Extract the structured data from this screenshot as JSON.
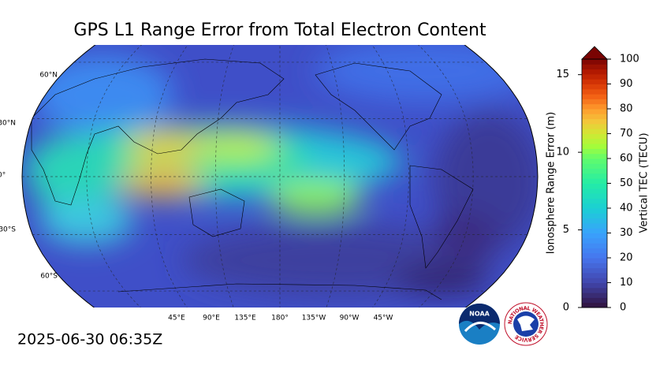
{
  "title": "GPS L1 Range Error from Total Electron Content",
  "timestamp": "2025-06-30 06:35Z",
  "map": {
    "lat_labels": [
      "60°N",
      "30°N",
      "0°",
      "30°S",
      "60°S"
    ],
    "lon_labels": [
      "45°E",
      "90°E",
      "135°E",
      "180°",
      "135°W",
      "90°W",
      "45°W"
    ]
  },
  "colorbar": {
    "left_label": "Ionosphere Range Error (m)",
    "left_lim": [
      0,
      16
    ],
    "left_ticks": [
      0,
      5,
      10,
      15
    ],
    "right_label": "Vertical TEC (TECU)",
    "right_lim": [
      0,
      100
    ],
    "right_ticks": [
      0,
      10,
      20,
      30,
      40,
      50,
      60,
      70,
      80,
      90,
      100
    ]
  },
  "logos": {
    "noaa": "NOAA",
    "nws": "NATIONAL WEATHER SERVICE"
  }
}
